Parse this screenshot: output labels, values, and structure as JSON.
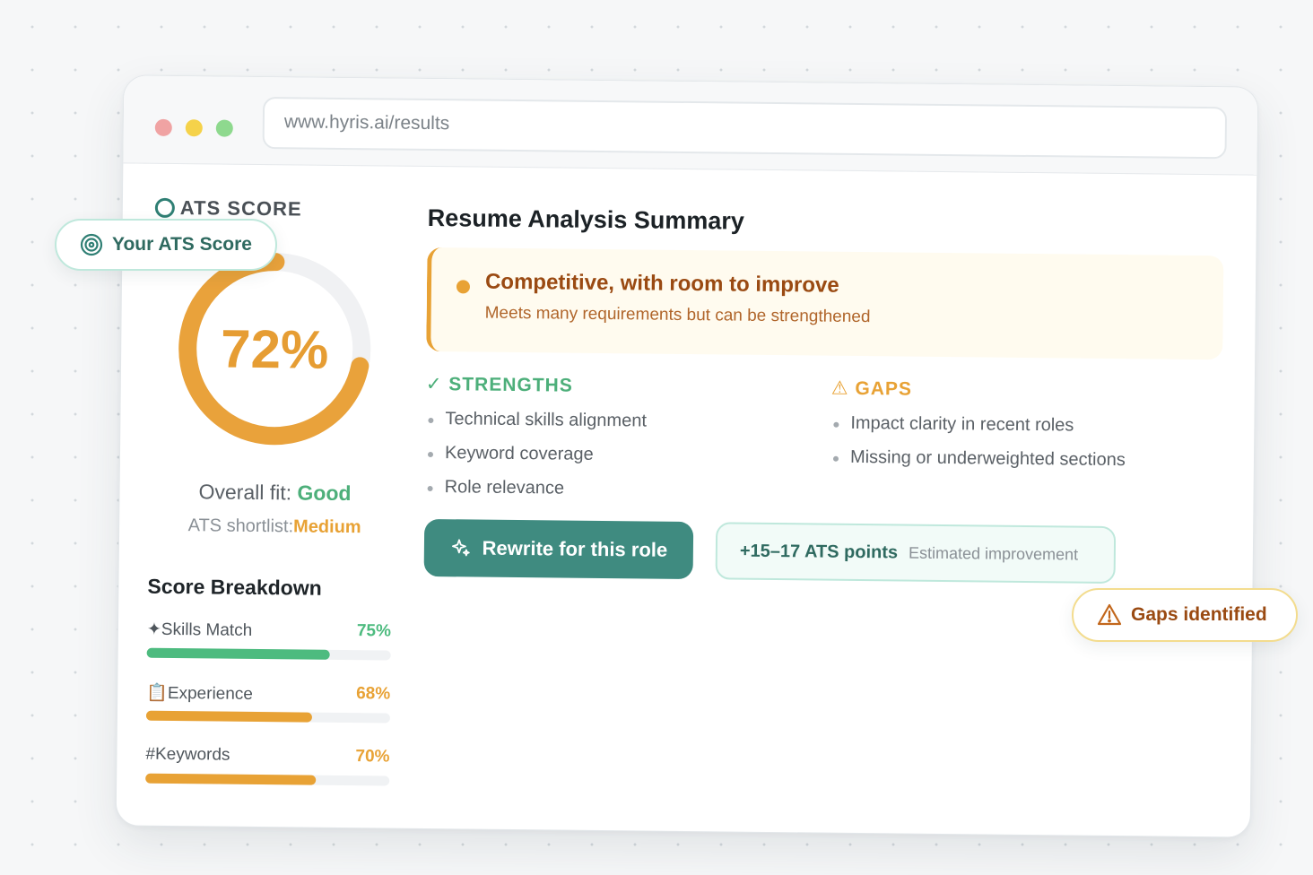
{
  "browser": {
    "url": "www.hyris.ai/results"
  },
  "score_panel": {
    "label": "ATS SCORE",
    "score": 72,
    "score_text": "72%",
    "overall_fit_label": "Overall fit:",
    "overall_fit_value": "Good",
    "shortlist_label": "ATS shortlist:",
    "shortlist_value": "Medium"
  },
  "breakdown": {
    "title": "Score Breakdown",
    "items": [
      {
        "icon": "✦",
        "label": "Skills Match",
        "pct_text": "75%",
        "value": 75,
        "color": "#4dbb7f"
      },
      {
        "icon": "📋",
        "label": "Experience",
        "pct_text": "68%",
        "value": 68,
        "color": "#e8a235"
      },
      {
        "icon": "#",
        "label": "Keywords",
        "pct_text": "70%",
        "value": 70,
        "color": "#e8a235"
      }
    ]
  },
  "summary": {
    "title": "Resume Analysis Summary",
    "verdict_title": "Competitive, with room to improve",
    "verdict_subtitle": "Meets many requirements but can be strengthened",
    "strengths_heading": "STRENGTHS",
    "strengths_icon": "✓",
    "strengths": [
      "Technical skills alignment",
      "Keyword coverage",
      "Role relevance"
    ],
    "gaps_heading": "GAPS",
    "gaps_icon": "⚠",
    "gaps": [
      "Impact clarity in recent roles",
      "Missing or underweighted sections"
    ]
  },
  "actions": {
    "rewrite_label": "Rewrite for this role",
    "points_value": "+15–17 ATS points",
    "points_caption": "Estimated improvement"
  },
  "badges": {
    "ats_score_label": "Your ATS Score",
    "gaps_label": "Gaps identified"
  },
  "colors": {
    "accent": "#3f8b80",
    "score_orange": "#e69d33",
    "good_green": "#4daf7a",
    "warning_brown": "#9a4a12"
  }
}
